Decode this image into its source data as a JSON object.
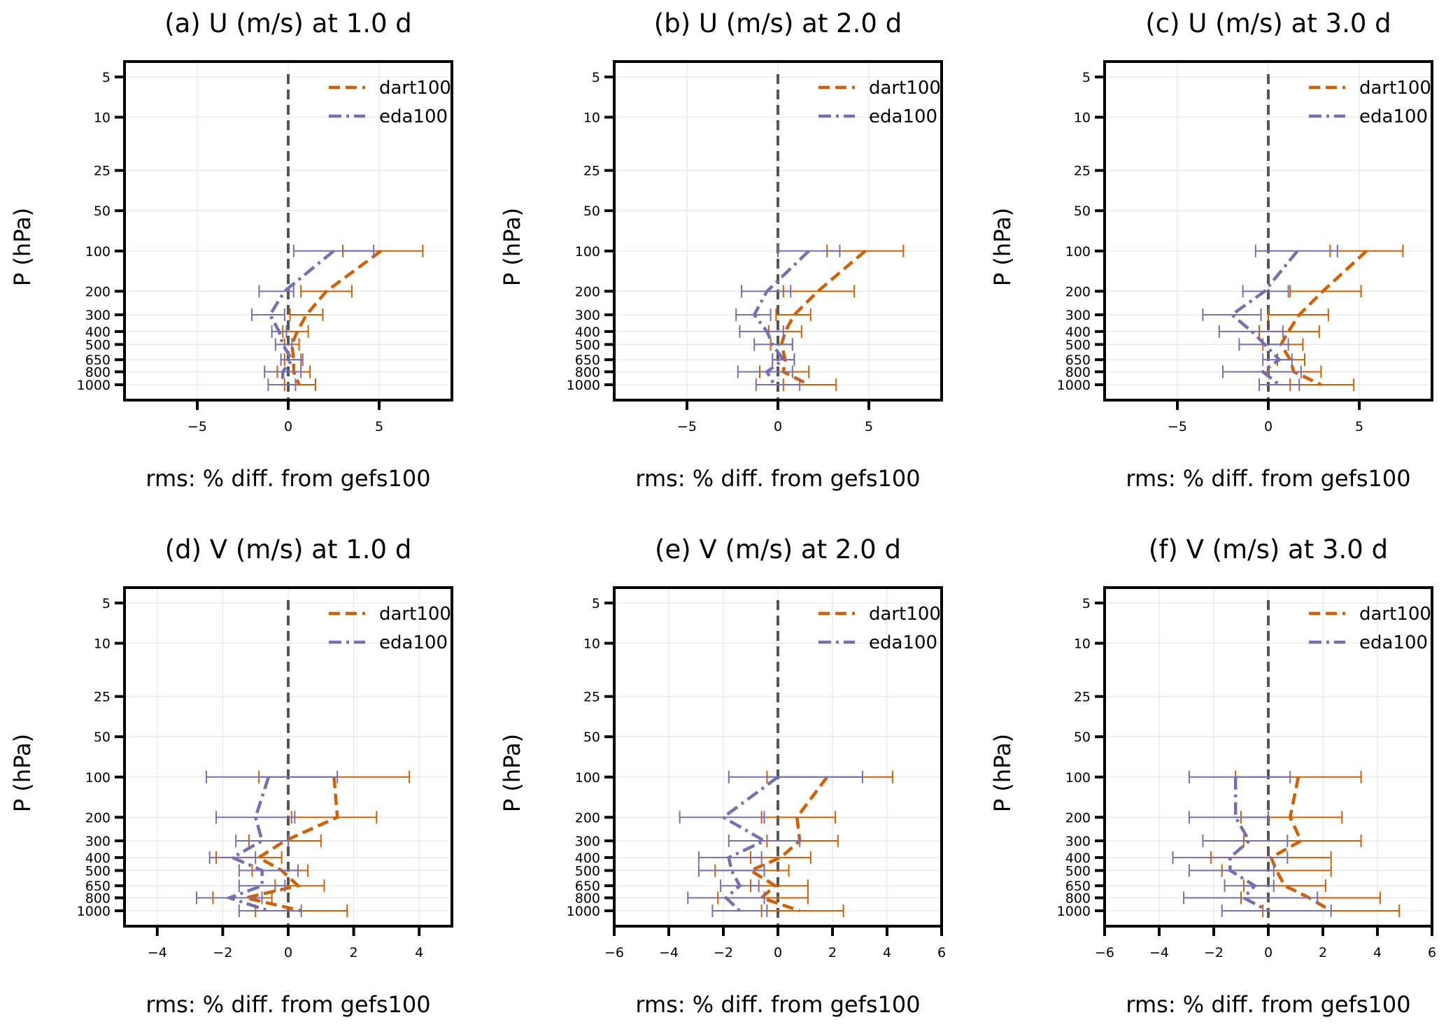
{
  "colors": {
    "dart": "#d55e00",
    "eda": "#7570b3",
    "zero_line": "#555555"
  },
  "legend": {
    "dart": "dart100",
    "eda": "eda100"
  },
  "chart_data": [
    {
      "type": "line",
      "title": "(a) U (m/s) at 1.0 d",
      "xlabel": "rms: % diff. from gefs100",
      "ylabel": "P (hPa)",
      "xlim": [
        -9,
        9
      ],
      "xticks": [
        -5,
        0,
        5
      ],
      "y_levels": [
        5,
        10,
        25,
        50,
        100,
        200,
        300,
        400,
        500,
        650,
        800,
        1000
      ],
      "series": [
        {
          "name": "dart100",
          "levels": [
            100,
            200,
            300,
            400,
            500,
            650,
            800,
            1000
          ],
          "values": [
            5.1,
            2.1,
            1.0,
            0.5,
            0.2,
            0.3,
            0.3,
            0.6
          ],
          "err_lo": [
            3.0,
            0.7,
            0.1,
            -0.3,
            -0.2,
            -0.2,
            -0.6,
            -0.2
          ],
          "err_hi": [
            7.4,
            3.5,
            1.9,
            1.1,
            0.6,
            0.7,
            1.2,
            1.5
          ]
        },
        {
          "name": "eda100",
          "levels": [
            100,
            200,
            300,
            400,
            500,
            650,
            800,
            1000
          ],
          "values": [
            2.5,
            -0.2,
            -1.0,
            -0.5,
            -0.3,
            0.2,
            -0.3,
            -0.3
          ],
          "err_lo": [
            0.3,
            -1.6,
            -2.0,
            -0.9,
            -0.7,
            -0.4,
            -1.3,
            -1.1
          ],
          "err_hi": [
            4.7,
            0.3,
            -0.2,
            -0.1,
            0.2,
            0.8,
            0.7,
            0.4
          ]
        }
      ]
    },
    {
      "type": "line",
      "title": "(b) U (m/s) at 2.0 d",
      "xlabel": "rms: % diff. from gefs100",
      "ylabel": "P (hPa)",
      "xlim": [
        -9,
        9
      ],
      "xticks": [
        -5,
        0,
        5
      ],
      "y_levels": [
        5,
        10,
        25,
        50,
        100,
        200,
        300,
        400,
        500,
        650,
        800,
        1000
      ],
      "series": [
        {
          "name": "dart100",
          "levels": [
            100,
            200,
            300,
            400,
            500,
            650,
            800,
            1000
          ],
          "values": [
            4.8,
            2.2,
            0.9,
            0.4,
            0.2,
            0.4,
            0.3,
            1.7
          ],
          "err_lo": [
            2.7,
            0.3,
            -0.1,
            -0.5,
            -0.4,
            -0.3,
            -1.0,
            0.3
          ],
          "err_hi": [
            6.9,
            4.2,
            1.8,
            1.3,
            0.8,
            0.9,
            1.7,
            3.2
          ]
        },
        {
          "name": "eda100",
          "levels": [
            100,
            200,
            300,
            400,
            500,
            650,
            800,
            1000
          ],
          "values": [
            1.7,
            -0.6,
            -1.3,
            -0.6,
            -0.3,
            0.3,
            -0.6,
            -0.2
          ],
          "err_lo": [
            0.0,
            -2.0,
            -2.3,
            -2.1,
            -1.3,
            -0.3,
            -2.2,
            -1.2
          ],
          "err_hi": [
            3.4,
            0.7,
            -0.4,
            0.3,
            0.8,
            0.9,
            0.8,
            1.2
          ]
        }
      ]
    },
    {
      "type": "line",
      "title": "(c) U (m/s) at 3.0 d",
      "xlabel": "rms: % diff. from gefs100",
      "ylabel": "P (hPa)",
      "xlim": [
        -9,
        9
      ],
      "xticks": [
        -5,
        0,
        5
      ],
      "y_levels": [
        5,
        10,
        25,
        50,
        100,
        200,
        300,
        400,
        500,
        650,
        800,
        1000
      ],
      "series": [
        {
          "name": "dart100",
          "levels": [
            100,
            200,
            300,
            400,
            500,
            650,
            800,
            1000
          ],
          "values": [
            5.4,
            3.0,
            1.7,
            1.1,
            0.7,
            1.2,
            1.4,
            2.9
          ],
          "err_lo": [
            3.4,
            1.2,
            0.0,
            -0.5,
            -0.3,
            0.5,
            0.0,
            1.2
          ],
          "err_hi": [
            7.4,
            5.1,
            3.3,
            2.8,
            1.9,
            2.0,
            2.9,
            4.7
          ]
        },
        {
          "name": "eda100",
          "levels": [
            100,
            200,
            300,
            400,
            500,
            650,
            800,
            1000
          ],
          "values": [
            1.6,
            -0.2,
            -2.0,
            -0.9,
            -0.2,
            0.6,
            -0.3,
            0.6
          ],
          "err_lo": [
            -0.7,
            -1.4,
            -3.6,
            -2.7,
            -1.6,
            -0.3,
            -2.5,
            -0.5
          ],
          "err_hi": [
            3.8,
            1.1,
            -0.4,
            0.8,
            1.1,
            1.3,
            1.8,
            1.7
          ]
        }
      ]
    },
    {
      "type": "line",
      "title": "(d) V (m/s) at 1.0 d",
      "xlabel": "rms: % diff. from gefs100",
      "ylabel": "P (hPa)",
      "xlim": [
        -5,
        5
      ],
      "xticks": [
        -4,
        -2,
        0,
        2,
        4
      ],
      "y_levels": [
        5,
        10,
        25,
        50,
        100,
        200,
        300,
        400,
        500,
        650,
        800,
        1000
      ],
      "series": [
        {
          "name": "dart100",
          "levels": [
            100,
            200,
            300,
            400,
            500,
            650,
            800,
            1000
          ],
          "values": [
            1.4,
            1.5,
            -0.1,
            -0.9,
            -0.2,
            0.3,
            -1.3,
            0.4
          ],
          "err_lo": [
            -0.9,
            0.1,
            -1.2,
            -2.2,
            -1.1,
            -0.4,
            -2.3,
            -1.0
          ],
          "err_hi": [
            3.7,
            2.7,
            1.0,
            -0.2,
            0.6,
            1.1,
            -0.5,
            1.8
          ]
        },
        {
          "name": "eda100",
          "levels": [
            100,
            200,
            300,
            400,
            500,
            650,
            800,
            1000
          ],
          "values": [
            -0.6,
            -1.0,
            -0.8,
            -1.7,
            -0.8,
            -0.8,
            -1.8,
            -0.6
          ],
          "err_lo": [
            -2.5,
            -2.2,
            -1.6,
            -2.4,
            -1.5,
            -1.5,
            -2.8,
            -1.5
          ],
          "err_hi": [
            1.5,
            0.2,
            0.0,
            -1.0,
            0.3,
            -0.1,
            -0.8,
            0.4
          ]
        }
      ]
    },
    {
      "type": "line",
      "title": "(e) V (m/s) at 2.0 d",
      "xlabel": "rms: % diff. from gefs100",
      "ylabel": "P (hPa)",
      "xlim": [
        -6,
        6
      ],
      "xticks": [
        -6,
        -4,
        -2,
        0,
        2,
        4,
        6
      ],
      "y_levels": [
        5,
        10,
        25,
        50,
        100,
        200,
        300,
        400,
        500,
        650,
        800,
        1000
      ],
      "series": [
        {
          "name": "dart100",
          "levels": [
            100,
            200,
            300,
            400,
            500,
            650,
            800,
            1000
          ],
          "values": [
            1.8,
            0.7,
            0.8,
            0.1,
            -1.0,
            -0.1,
            -0.6,
            0.8
          ],
          "err_lo": [
            -0.4,
            -0.6,
            -0.4,
            -1.0,
            -2.3,
            -1.0,
            -2.2,
            -0.6
          ],
          "err_hi": [
            4.2,
            2.1,
            2.2,
            1.2,
            0.4,
            1.1,
            1.1,
            2.4
          ]
        },
        {
          "name": "eda100",
          "levels": [
            100,
            200,
            300,
            400,
            500,
            650,
            800,
            1000
          ],
          "values": [
            0.0,
            -2.0,
            -0.5,
            -1.8,
            -1.7,
            -1.4,
            -1.9,
            -1.4
          ],
          "err_lo": [
            -1.8,
            -3.6,
            -1.8,
            -2.9,
            -2.9,
            -2.1,
            -3.3,
            -2.4
          ],
          "err_hi": [
            3.1,
            -0.5,
            0.8,
            -0.6,
            -0.5,
            -0.7,
            -0.5,
            -0.4
          ]
        }
      ]
    },
    {
      "type": "line",
      "title": "(f) V (m/s) at 3.0 d",
      "xlabel": "rms: % diff. from gefs100",
      "ylabel": "P (hPa)",
      "xlim": [
        -6,
        6
      ],
      "xticks": [
        -6,
        -4,
        -2,
        0,
        2,
        4,
        6
      ],
      "y_levels": [
        5,
        10,
        25,
        50,
        100,
        200,
        300,
        400,
        500,
        650,
        800,
        1000
      ],
      "series": [
        {
          "name": "dart100",
          "levels": [
            100,
            200,
            300,
            400,
            500,
            650,
            800,
            1000
          ],
          "values": [
            1.1,
            0.8,
            1.2,
            0.1,
            0.3,
            0.6,
            1.5,
            2.3
          ],
          "err_lo": [
            -1.2,
            -1.0,
            -0.9,
            -2.1,
            -1.7,
            -0.9,
            -1.0,
            -0.2
          ],
          "err_hi": [
            3.4,
            2.7,
            3.4,
            2.3,
            2.3,
            2.1,
            4.1,
            4.8
          ]
        },
        {
          "name": "eda100",
          "levels": [
            100,
            200,
            300,
            400,
            500,
            650,
            800,
            1000
          ],
          "values": [
            -1.2,
            -1.2,
            -0.7,
            -1.4,
            -1.4,
            -0.5,
            -0.9,
            0.0
          ],
          "err_lo": [
            -2.9,
            -2.9,
            -2.4,
            -3.5,
            -2.9,
            -1.6,
            -3.1,
            -1.7
          ],
          "err_hi": [
            0.8,
            0.0,
            0.7,
            0.7,
            0.2,
            0.2,
            1.8,
            2.3
          ]
        }
      ]
    }
  ]
}
